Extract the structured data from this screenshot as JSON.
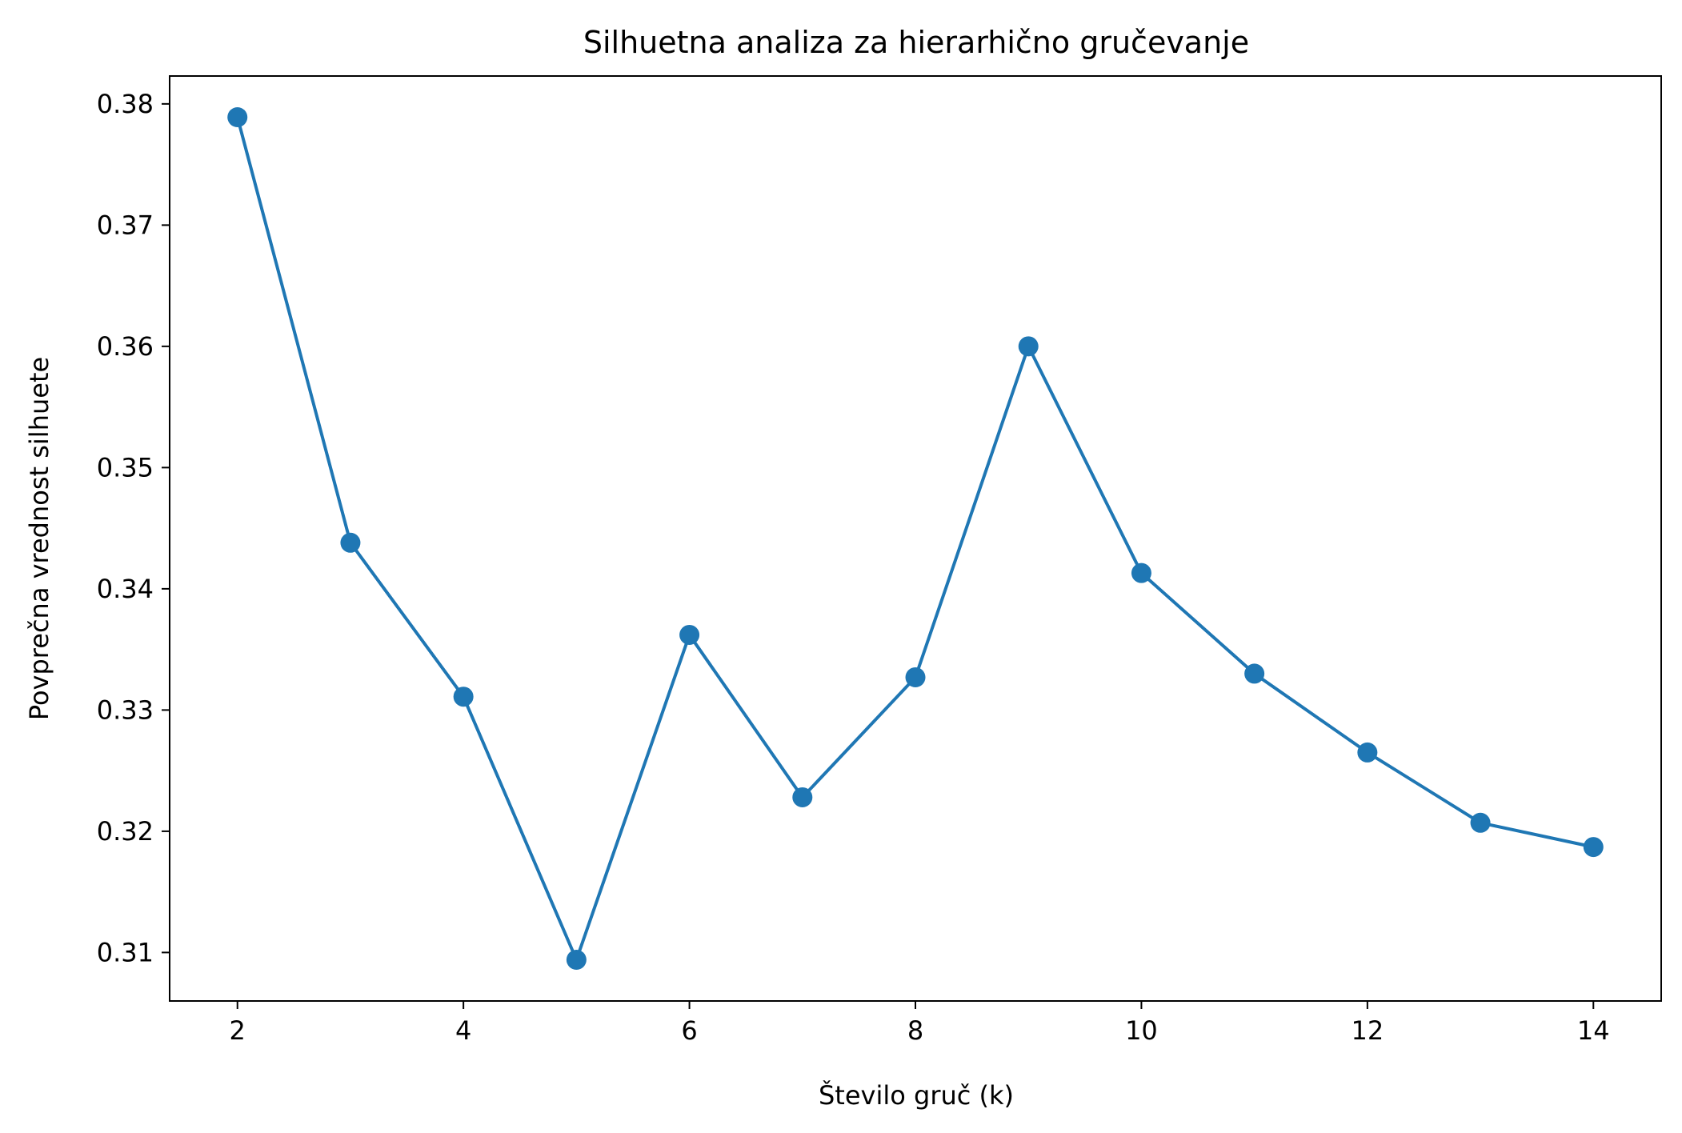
{
  "chart_data": {
    "type": "line",
    "title": "Silhuetna analiza za hierarhično gručevanje",
    "xlabel": "Število gruč (k)",
    "ylabel": "Povprečna vrednost silhuete",
    "x": [
      2,
      3,
      4,
      5,
      6,
      7,
      8,
      9,
      10,
      11,
      12,
      13,
      14
    ],
    "y": [
      0.3789,
      0.3438,
      0.3311,
      0.3094,
      0.3362,
      0.3228,
      0.3327,
      0.36,
      0.3413,
      0.333,
      0.3265,
      0.3207,
      0.3187
    ],
    "xlim": [
      1.4,
      14.6
    ],
    "ylim": [
      0.306,
      0.3823
    ],
    "xticks": [
      2,
      4,
      6,
      8,
      10,
      12,
      14
    ],
    "xtick_labels": [
      "2",
      "4",
      "6",
      "8",
      "10",
      "12",
      "14"
    ],
    "yticks": [
      0.31,
      0.32,
      0.33,
      0.34,
      0.35,
      0.36,
      0.37,
      0.38
    ],
    "ytick_labels": [
      "0.31",
      "0.32",
      "0.33",
      "0.34",
      "0.35",
      "0.36",
      "0.37",
      "0.38"
    ],
    "color": "#1f77b4",
    "marker": "circle",
    "grid": false,
    "legend": "none"
  }
}
